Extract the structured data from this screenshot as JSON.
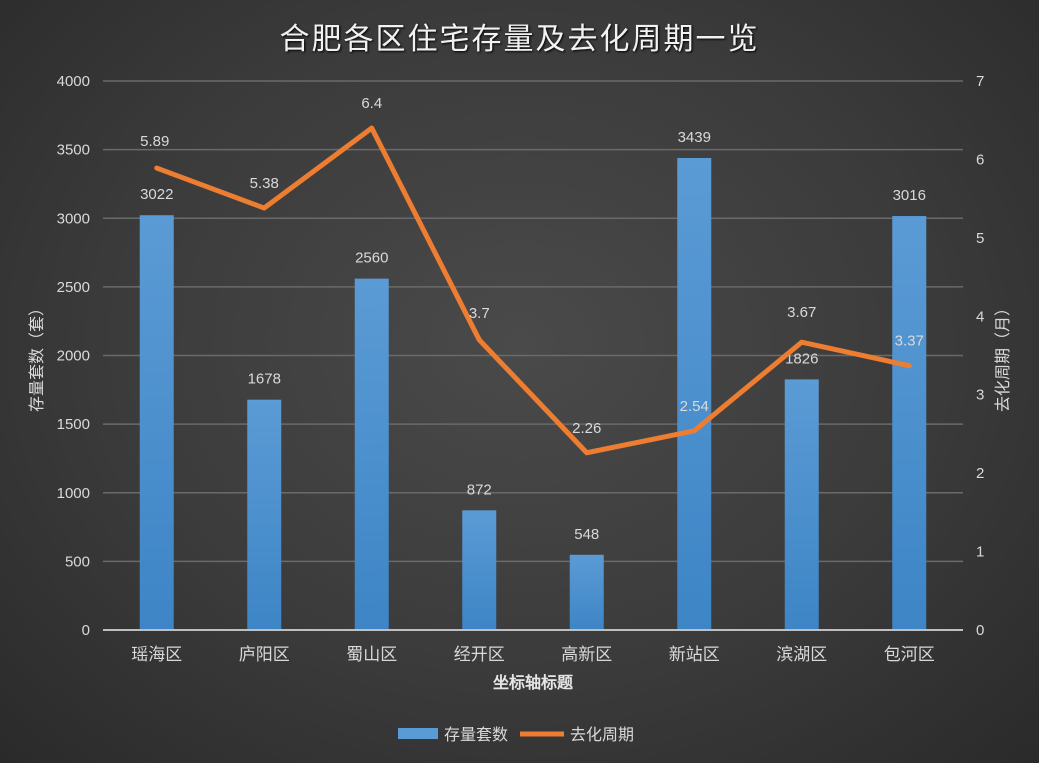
{
  "title": "合肥各区住宅存量及去化周期一览",
  "colors": {
    "bar": "#5b9bd5",
    "bar_dark": "#3d85c6",
    "line": "#ed7d31",
    "grid": "#6a6a6a",
    "text": "#d9d9d9"
  },
  "axes": {
    "x_title": "坐标轴标题",
    "y_left_title": "存量套数（套）",
    "y_right_title": "去化周期（月）",
    "y_left_ticks": [
      "0",
      "500",
      "1000",
      "1500",
      "2000",
      "2500",
      "3000",
      "3500",
      "4000"
    ],
    "y_right_ticks": [
      "0",
      "1",
      "2",
      "3",
      "4",
      "5",
      "6",
      "7"
    ]
  },
  "legend": {
    "items": [
      {
        "label": "存量套数",
        "type": "bar"
      },
      {
        "label": "去化周期",
        "type": "line"
      }
    ]
  },
  "chart_data": {
    "type": "bar+line",
    "title": "合肥各区住宅存量及去化周期一览",
    "categories": [
      "瑶海区",
      "庐阳区",
      "蜀山区",
      "经开区",
      "高新区",
      "新站区",
      "滨湖区",
      "包河区"
    ],
    "series": [
      {
        "name": "存量套数",
        "type": "bar",
        "axis": "left",
        "values": [
          3022,
          1678,
          2560,
          872,
          548,
          3439,
          1826,
          3016
        ]
      },
      {
        "name": "去化周期",
        "type": "line",
        "axis": "right",
        "values": [
          5.89,
          5.38,
          6.4,
          3.7,
          2.26,
          2.54,
          3.67,
          3.37
        ]
      }
    ],
    "xlabel": "坐标轴标题",
    "ylabel": "存量套数（套）",
    "y2label": "去化周期（月）",
    "ylim": [
      0,
      4000
    ],
    "y2lim": [
      0,
      7
    ],
    "grid": true,
    "legend_position": "bottom"
  }
}
